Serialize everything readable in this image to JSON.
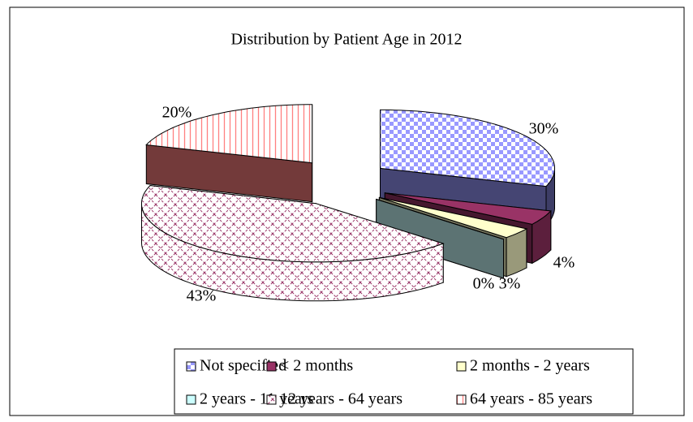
{
  "chart_data": {
    "type": "pie",
    "title": "Distribution by Patient Age in 2012",
    "categories": [
      "Not specified",
      "< 2 months",
      "2 months - 2 years",
      "2 years - 11 years",
      "12 years - 64 years",
      "64 years - 85 years"
    ],
    "values": [
      30,
      4,
      3,
      0,
      43,
      20
    ],
    "value_labels": [
      "30%",
      "4%",
      "3%",
      "0%",
      "43%",
      "20%"
    ],
    "colors": [
      "#9999ff",
      "#993366",
      "#ffffcc",
      "#ccffff",
      "#993366",
      "#ff8080"
    ],
    "legend": "bottom"
  }
}
